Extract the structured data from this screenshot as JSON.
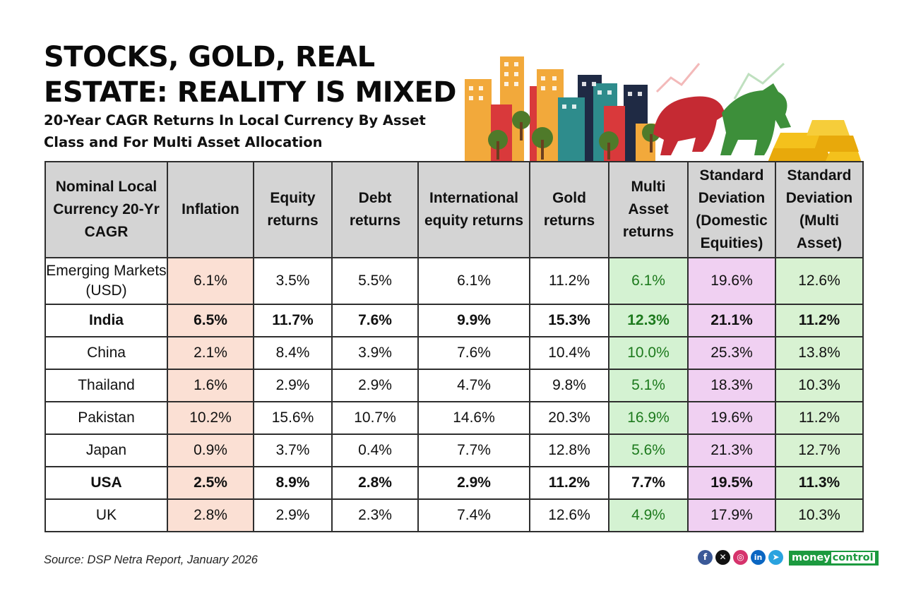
{
  "header": {
    "title": "STOCKS, GOLD, REAL ESTATE: REALITY IS MIXED",
    "subtitle": "20-Year CAGR Returns In Local Currency By Asset Class and For Multi Asset Allocation"
  },
  "footer": {
    "source": "Source: DSP Netra Report, January 2026",
    "social_icons": [
      "facebook-icon",
      "x-icon",
      "instagram-icon",
      "linkedin-icon",
      "telegram-icon"
    ],
    "brand": {
      "part1": "money",
      "part2": "control"
    }
  },
  "colors": {
    "header_bg": "#d4d4d4",
    "inflation_bg": "#fbe0d4",
    "multi_asset_bg": "#d4f2d2",
    "multi_asset_text": "#1d7a1d",
    "sd_domestic_bg": "#f0d0f2",
    "sd_multi_bg": "#d8f2d2",
    "brand_green": "#1c9a3f"
  },
  "chart_data": {
    "type": "table",
    "columns": [
      "Nominal Local Currency 20-Yr CAGR",
      "Inflation",
      "Equity returns",
      "Debt returns",
      "International equity returns",
      "Gold returns",
      "Multi Asset returns",
      "Standard Deviation (Domestic Equities)",
      "Standard Deviation (Multi Asset)"
    ],
    "rows": [
      {
        "country": "Emerging Markets (USD)",
        "values": [
          "6.1%",
          "3.5%",
          "5.5%",
          "6.1%",
          "11.2%",
          "6.1%",
          "19.6%",
          "12.6%"
        ],
        "bold": false,
        "multi_highlight": true
      },
      {
        "country": "India",
        "values": [
          "6.5%",
          "11.7%",
          "7.6%",
          "9.9%",
          "15.3%",
          "12.3%",
          "21.1%",
          "11.2%"
        ],
        "bold": true,
        "multi_highlight": true
      },
      {
        "country": "China",
        "values": [
          "2.1%",
          "8.4%",
          "3.9%",
          "7.6%",
          "10.4%",
          "10.0%",
          "25.3%",
          "13.8%"
        ],
        "bold": false,
        "multi_highlight": true
      },
      {
        "country": "Thailand",
        "values": [
          "1.6%",
          "2.9%",
          "2.9%",
          "4.7%",
          "9.8%",
          "5.1%",
          "18.3%",
          "10.3%"
        ],
        "bold": false,
        "multi_highlight": true
      },
      {
        "country": "Pakistan",
        "values": [
          "10.2%",
          "15.6%",
          "10.7%",
          "14.6%",
          "20.3%",
          "16.9%",
          "19.6%",
          "11.2%"
        ],
        "bold": false,
        "multi_highlight": true
      },
      {
        "country": "Japan",
        "values": [
          "0.9%",
          "3.7%",
          "0.4%",
          "7.7%",
          "12.8%",
          "5.6%",
          "21.3%",
          "12.7%"
        ],
        "bold": false,
        "multi_highlight": true
      },
      {
        "country": "USA",
        "values": [
          "2.5%",
          "8.9%",
          "2.8%",
          "2.9%",
          "11.2%",
          "7.7%",
          "19.5%",
          "11.3%"
        ],
        "bold": true,
        "multi_highlight": false
      },
      {
        "country": "UK",
        "values": [
          "2.8%",
          "2.9%",
          "2.3%",
          "7.4%",
          "12.6%",
          "4.9%",
          "17.9%",
          "10.3%"
        ],
        "bold": false,
        "multi_highlight": true
      }
    ]
  }
}
